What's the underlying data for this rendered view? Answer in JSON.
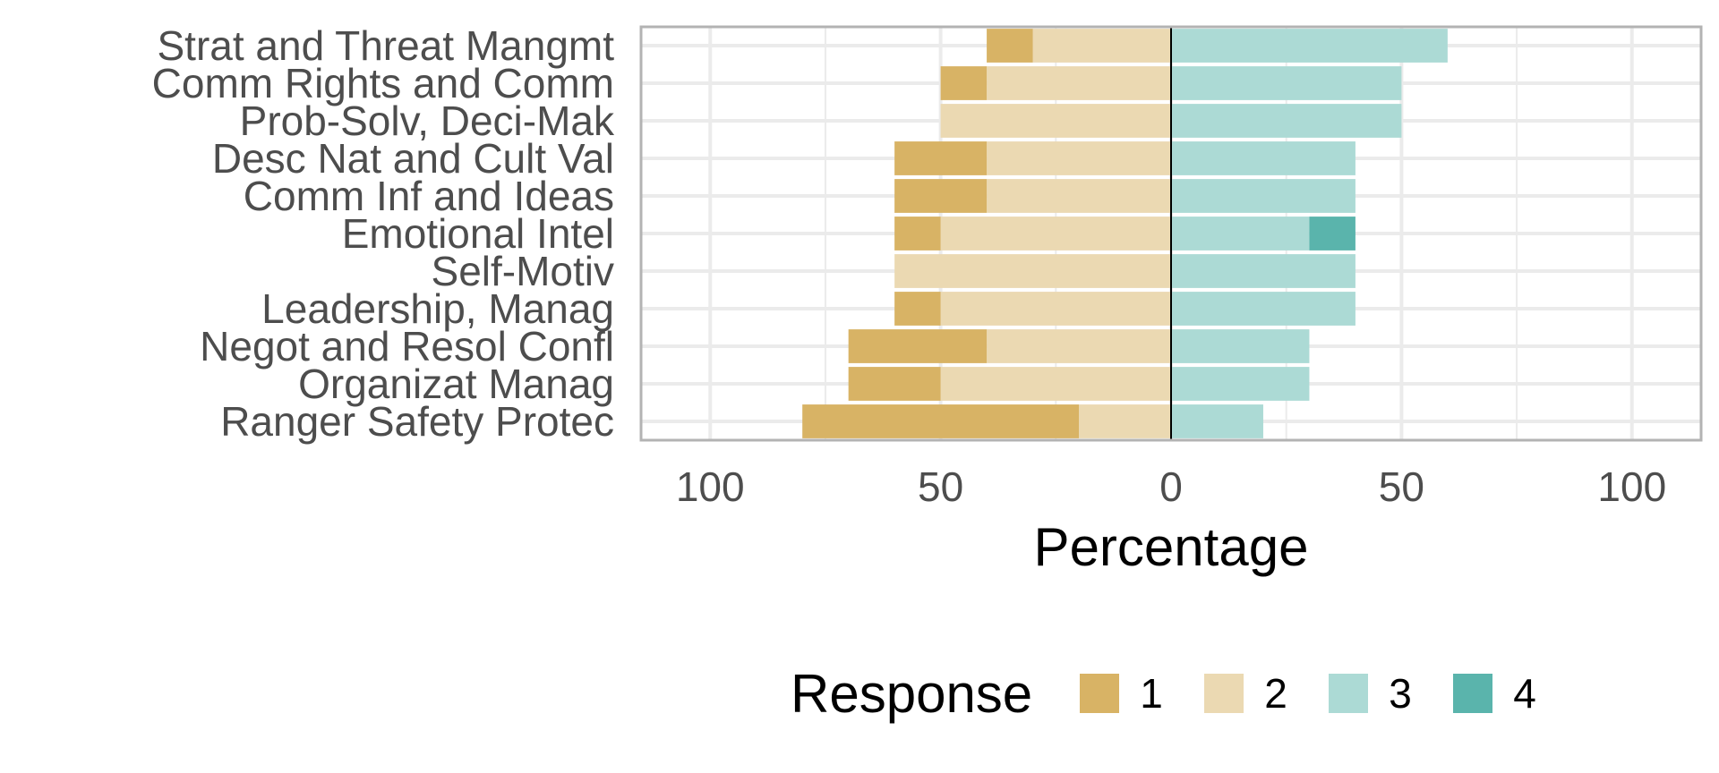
{
  "chart_data": {
    "type": "bar",
    "orientation": "horizontal-diverging",
    "categories": [
      "Strat and Threat Mangmt",
      "Comm Rights and Comm",
      "Prob-Solv, Deci-Mak",
      "Desc Nat and Cult Val",
      "Comm Inf and Ideas",
      "Emotional Intel",
      "Self-Motiv",
      "Leadership, Manag",
      "Negot and Resol Confl",
      "Organizat Manag",
      "Ranger Safety Protec"
    ],
    "series": [
      {
        "name": "1",
        "color": "#d8b365",
        "side": "negative",
        "values": [
          10,
          10,
          0,
          20,
          20,
          10,
          0,
          10,
          30,
          20,
          60
        ]
      },
      {
        "name": "2",
        "color": "#ebd9b2",
        "side": "negative",
        "values": [
          30,
          40,
          50,
          40,
          40,
          50,
          60,
          50,
          40,
          50,
          20
        ]
      },
      {
        "name": "3",
        "color": "#acdad5",
        "side": "positive",
        "values": [
          60,
          50,
          50,
          40,
          40,
          30,
          40,
          40,
          30,
          30,
          20
        ]
      },
      {
        "name": "4",
        "color": "#5ab4ac",
        "side": "positive",
        "values": [
          0,
          0,
          0,
          0,
          0,
          10,
          0,
          0,
          0,
          0,
          0
        ]
      }
    ],
    "xlabel": "Percentage",
    "ylabel": "",
    "xlim": [
      -115,
      115
    ],
    "x_ticks": [
      -100,
      -50,
      0,
      50,
      100
    ],
    "x_tick_labels": [
      "100",
      "50",
      "0",
      "50",
      "100"
    ],
    "grid": true,
    "legend": {
      "title": "Response",
      "position": "bottom"
    }
  }
}
